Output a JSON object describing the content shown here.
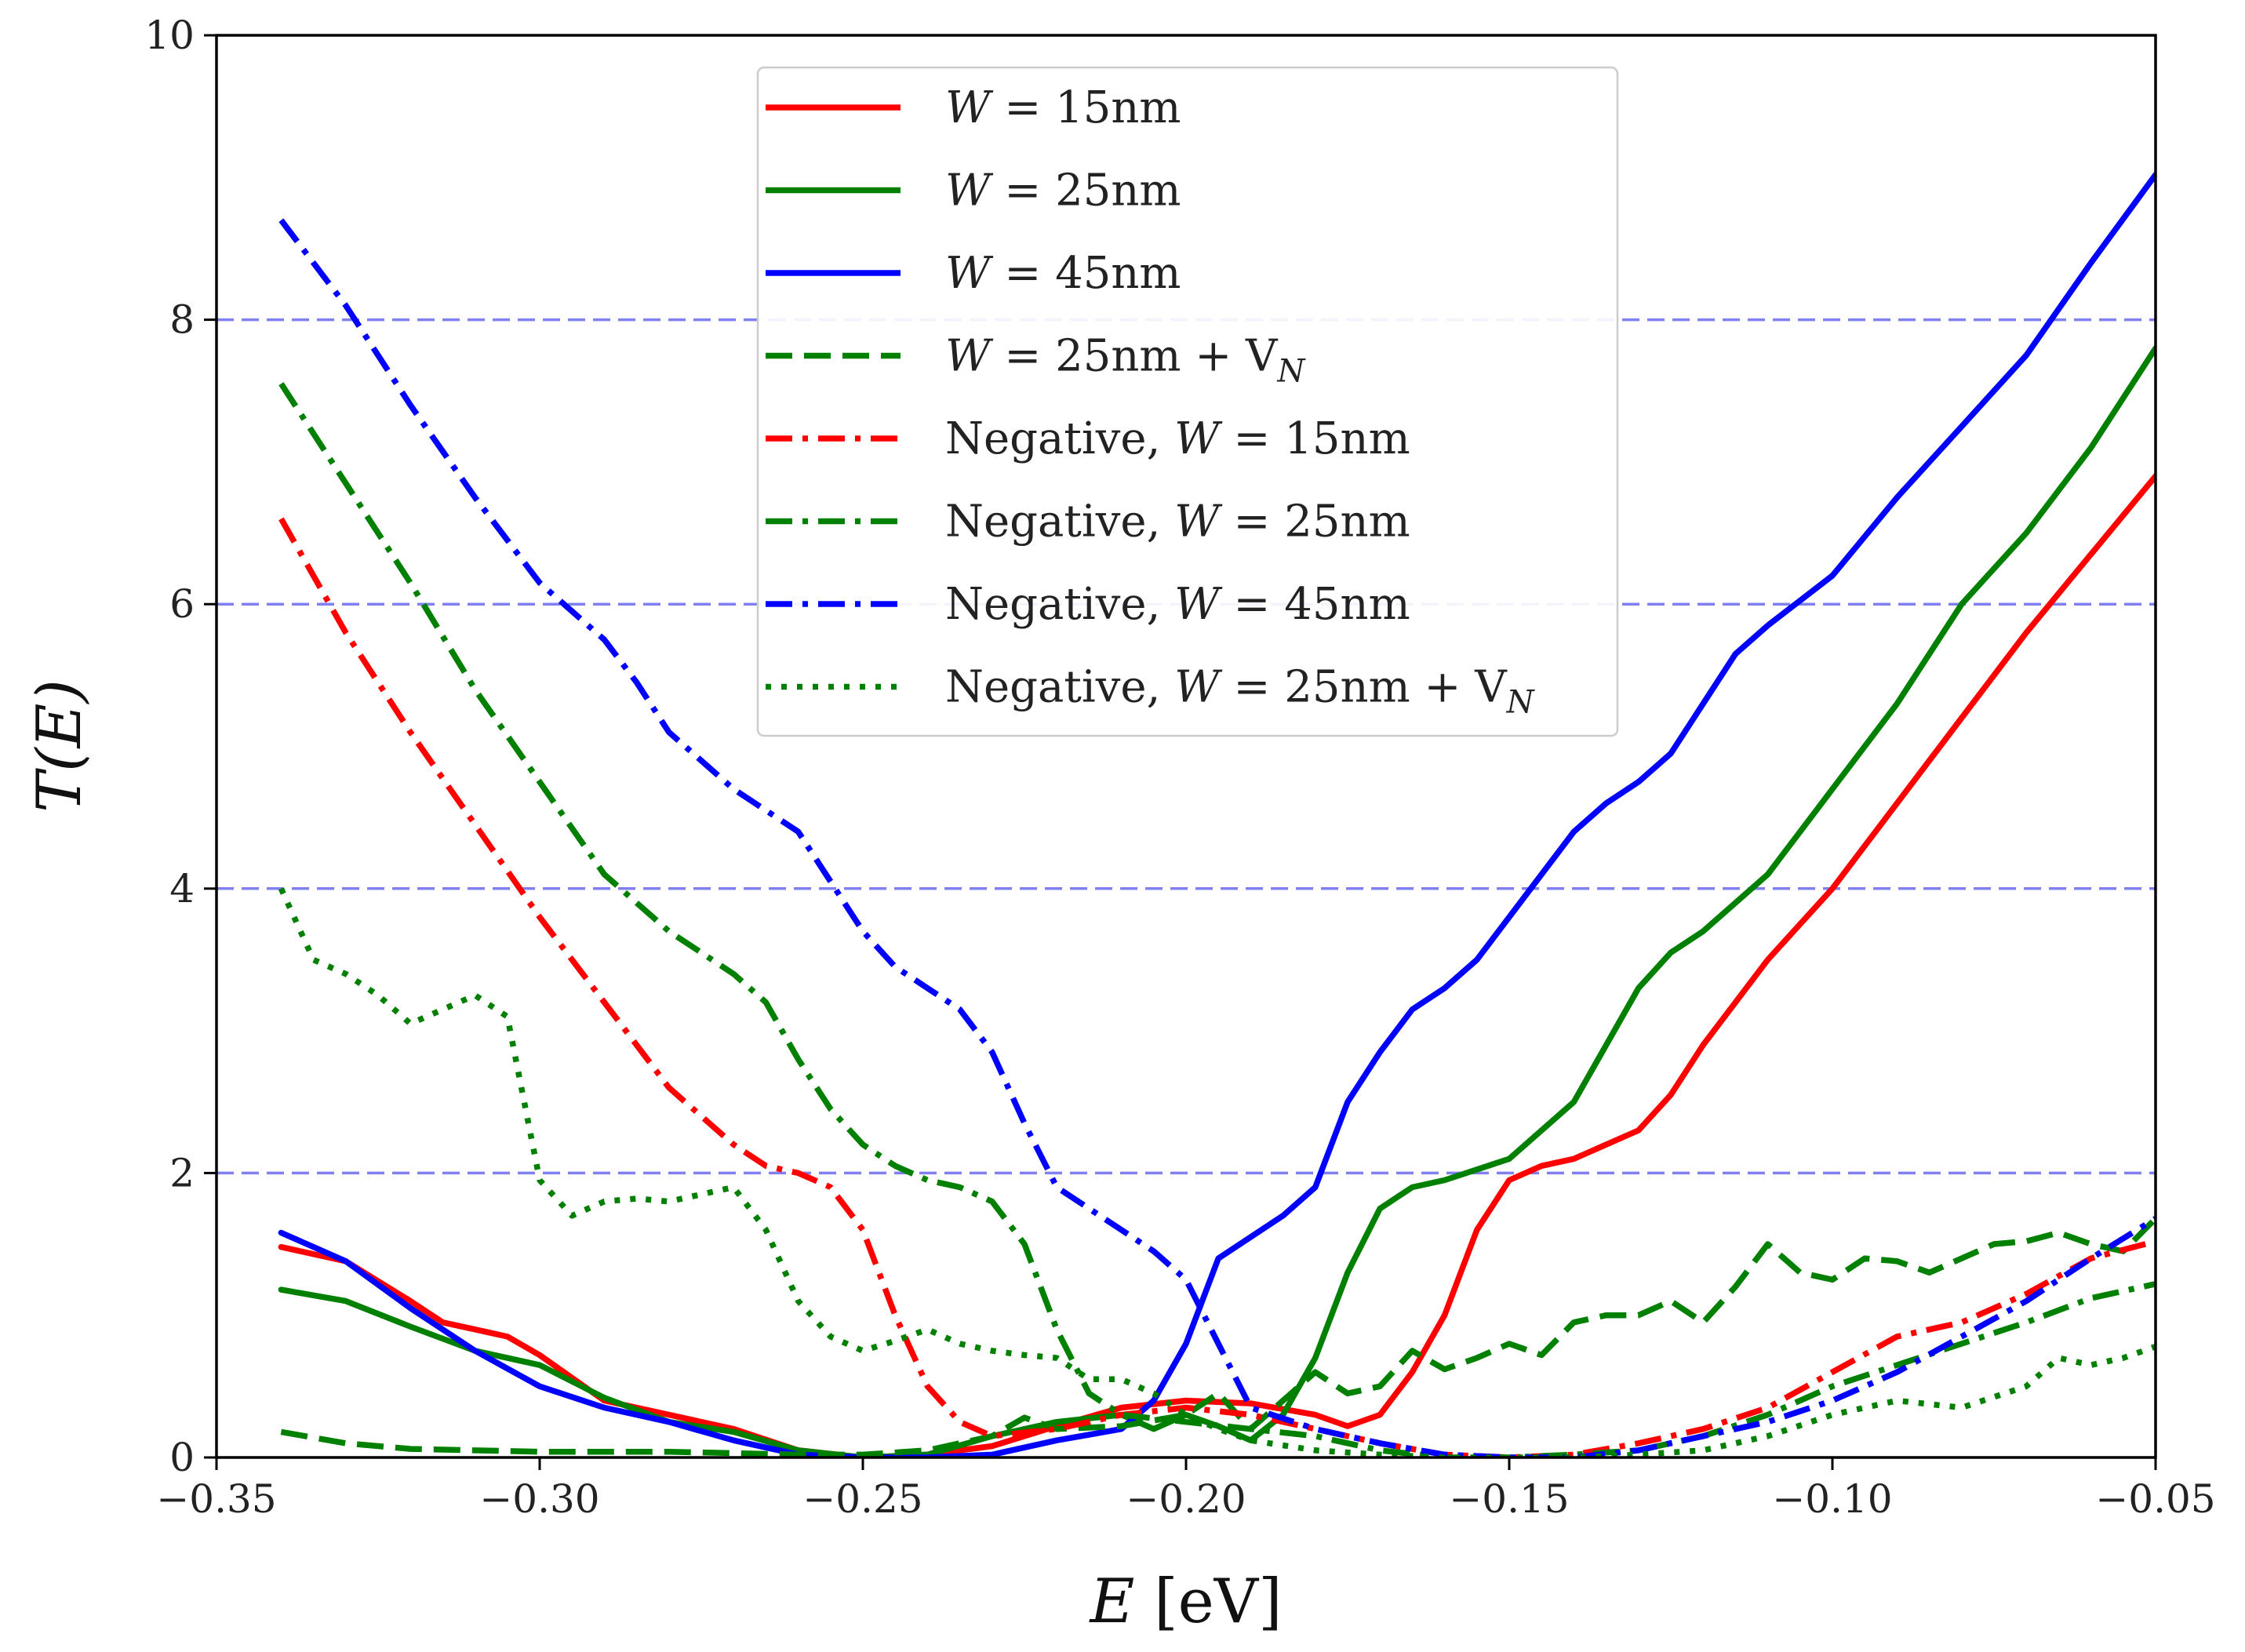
{
  "chart_data": {
    "type": "line",
    "title": "",
    "xlabel_var": "E",
    "xlabel_unit": "[eV]",
    "ylabel": "T(E)",
    "xlim": [
      -0.35,
      -0.05
    ],
    "ylim": [
      0,
      10
    ],
    "xticks": [
      -0.35,
      -0.3,
      -0.25,
      -0.2,
      -0.15,
      -0.1,
      -0.05
    ],
    "xtick_labels": [
      "−0.35",
      "−0.30",
      "−0.25",
      "−0.20",
      "−0.15",
      "−0.10",
      "−0.05"
    ],
    "yticks": [
      0,
      2,
      4,
      6,
      8,
      10
    ],
    "ytick_labels": [
      "0",
      "2",
      "4",
      "6",
      "8",
      "10"
    ],
    "reference_lines": {
      "y": [
        2,
        4,
        6,
        8
      ],
      "color": "#8080f0",
      "style": "dashed"
    },
    "legend_position": "top-center",
    "series": [
      {
        "name": "W=15nm",
        "legend_var": "W",
        "legend_rest": " = 15nm",
        "legend_sub": "",
        "color": "#ff0000",
        "style": "solid",
        "x": [
          -0.34,
          -0.33,
          -0.32,
          -0.315,
          -0.31,
          -0.305,
          -0.3,
          -0.29,
          -0.28,
          -0.27,
          -0.26,
          -0.25,
          -0.24,
          -0.23,
          -0.22,
          -0.21,
          -0.2,
          -0.19,
          -0.18,
          -0.175,
          -0.17,
          -0.165,
          -0.16,
          -0.155,
          -0.15,
          -0.145,
          -0.14,
          -0.13,
          -0.125,
          -0.12,
          -0.11,
          -0.1,
          -0.09,
          -0.08,
          -0.07,
          -0.06,
          -0.05
        ],
        "y": [
          1.48,
          1.38,
          1.1,
          0.95,
          0.9,
          0.85,
          0.72,
          0.4,
          0.3,
          0.2,
          0.05,
          0.0,
          0.02,
          0.08,
          0.22,
          0.35,
          0.4,
          0.38,
          0.3,
          0.22,
          0.3,
          0.6,
          1.0,
          1.6,
          1.95,
          2.05,
          2.1,
          2.3,
          2.55,
          2.9,
          3.5,
          4.0,
          4.6,
          5.2,
          5.8,
          6.35,
          6.9
        ]
      },
      {
        "name": "W=25nm",
        "legend_var": "W",
        "legend_rest": " = 25nm",
        "legend_sub": "",
        "color": "#008000",
        "style": "solid",
        "x": [
          -0.34,
          -0.33,
          -0.32,
          -0.31,
          -0.3,
          -0.29,
          -0.28,
          -0.27,
          -0.26,
          -0.25,
          -0.24,
          -0.23,
          -0.22,
          -0.21,
          -0.205,
          -0.2,
          -0.195,
          -0.19,
          -0.185,
          -0.18,
          -0.175,
          -0.17,
          -0.165,
          -0.16,
          -0.15,
          -0.14,
          -0.13,
          -0.125,
          -0.12,
          -0.11,
          -0.1,
          -0.09,
          -0.08,
          -0.07,
          -0.06,
          -0.05
        ],
        "y": [
          1.18,
          1.1,
          0.92,
          0.75,
          0.65,
          0.42,
          0.25,
          0.18,
          0.05,
          0.0,
          0.02,
          0.15,
          0.25,
          0.3,
          0.2,
          0.3,
          0.22,
          0.12,
          0.3,
          0.7,
          1.3,
          1.75,
          1.9,
          1.95,
          2.1,
          2.5,
          3.3,
          3.55,
          3.7,
          4.1,
          4.7,
          5.3,
          6.0,
          6.5,
          7.1,
          7.8
        ]
      },
      {
        "name": "W=45nm",
        "legend_var": "W",
        "legend_rest": " = 45nm",
        "legend_sub": "",
        "color": "#0000ff",
        "style": "solid",
        "x": [
          -0.34,
          -0.33,
          -0.32,
          -0.31,
          -0.3,
          -0.29,
          -0.28,
          -0.27,
          -0.26,
          -0.25,
          -0.24,
          -0.23,
          -0.22,
          -0.21,
          -0.205,
          -0.2,
          -0.195,
          -0.19,
          -0.185,
          -0.18,
          -0.175,
          -0.17,
          -0.165,
          -0.16,
          -0.155,
          -0.15,
          -0.14,
          -0.135,
          -0.13,
          -0.125,
          -0.12,
          -0.115,
          -0.11,
          -0.1,
          -0.09,
          -0.08,
          -0.07,
          -0.06,
          -0.05
        ],
        "y": [
          1.58,
          1.38,
          1.05,
          0.75,
          0.5,
          0.35,
          0.25,
          0.12,
          0.02,
          0.0,
          0.0,
          0.02,
          0.12,
          0.2,
          0.4,
          0.8,
          1.4,
          1.55,
          1.7,
          1.9,
          2.5,
          2.85,
          3.15,
          3.3,
          3.5,
          3.8,
          4.4,
          4.6,
          4.75,
          4.95,
          5.3,
          5.65,
          5.85,
          6.2,
          6.75,
          7.25,
          7.75,
          8.4,
          9.02
        ]
      },
      {
        "name": "W=25nm + V_N",
        "legend_var": "W",
        "legend_rest": " = 25nm + V",
        "legend_sub": "N",
        "color": "#008000",
        "style": "dashed",
        "x": [
          -0.34,
          -0.33,
          -0.32,
          -0.3,
          -0.28,
          -0.26,
          -0.25,
          -0.24,
          -0.23,
          -0.225,
          -0.22,
          -0.21,
          -0.2,
          -0.195,
          -0.19,
          -0.185,
          -0.18,
          -0.175,
          -0.17,
          -0.165,
          -0.16,
          -0.155,
          -0.15,
          -0.145,
          -0.14,
          -0.135,
          -0.13,
          -0.125,
          -0.12,
          -0.115,
          -0.11,
          -0.105,
          -0.1,
          -0.095,
          -0.09,
          -0.085,
          -0.08,
          -0.075,
          -0.07,
          -0.065,
          -0.06,
          -0.055,
          -0.05
        ],
        "y": [
          0.18,
          0.1,
          0.06,
          0.04,
          0.04,
          0.02,
          0.02,
          0.05,
          0.15,
          0.28,
          0.2,
          0.22,
          0.3,
          0.45,
          0.2,
          0.4,
          0.6,
          0.45,
          0.5,
          0.75,
          0.62,
          0.7,
          0.8,
          0.72,
          0.95,
          1.0,
          1.0,
          1.1,
          0.95,
          1.2,
          1.5,
          1.3,
          1.25,
          1.4,
          1.38,
          1.3,
          1.4,
          1.5,
          1.52,
          1.58,
          1.5,
          1.45,
          1.68
        ]
      },
      {
        "name": "Negative, W=15nm",
        "legend_var": "W",
        "legend_rest": " = 15nm",
        "legend_sub": "",
        "legend_prefix": "Negative, ",
        "color": "#ff0000",
        "style": "dashdot",
        "x": [
          -0.34,
          -0.33,
          -0.32,
          -0.31,
          -0.3,
          -0.29,
          -0.28,
          -0.27,
          -0.265,
          -0.26,
          -0.255,
          -0.25,
          -0.245,
          -0.24,
          -0.235,
          -0.23,
          -0.22,
          -0.21,
          -0.2,
          -0.19,
          -0.18,
          -0.17,
          -0.16,
          -0.15,
          -0.14,
          -0.13,
          -0.12,
          -0.11,
          -0.1,
          -0.09,
          -0.08,
          -0.07,
          -0.06,
          -0.05
        ],
        "y": [
          6.6,
          5.8,
          5.1,
          4.45,
          3.8,
          3.2,
          2.6,
          2.2,
          2.05,
          2.0,
          1.9,
          1.6,
          1.0,
          0.5,
          0.25,
          0.15,
          0.2,
          0.3,
          0.35,
          0.3,
          0.2,
          0.1,
          0.02,
          0.0,
          0.02,
          0.1,
          0.2,
          0.35,
          0.6,
          0.85,
          0.95,
          1.15,
          1.4,
          1.52
        ]
      },
      {
        "name": "Negative, W=25nm",
        "legend_var": "W",
        "legend_rest": " = 25nm",
        "legend_sub": "",
        "legend_prefix": "Negative, ",
        "color": "#008000",
        "style": "dashdot",
        "x": [
          -0.34,
          -0.33,
          -0.32,
          -0.31,
          -0.3,
          -0.29,
          -0.28,
          -0.275,
          -0.27,
          -0.265,
          -0.26,
          -0.255,
          -0.25,
          -0.245,
          -0.24,
          -0.235,
          -0.23,
          -0.225,
          -0.22,
          -0.215,
          -0.21,
          -0.2,
          -0.19,
          -0.18,
          -0.17,
          -0.16,
          -0.15,
          -0.14,
          -0.13,
          -0.12,
          -0.11,
          -0.1,
          -0.09,
          -0.08,
          -0.07,
          -0.06,
          -0.05
        ],
        "y": [
          7.55,
          6.85,
          6.15,
          5.4,
          4.75,
          4.1,
          3.7,
          3.55,
          3.4,
          3.2,
          2.8,
          2.45,
          2.2,
          2.05,
          1.95,
          1.9,
          1.8,
          1.5,
          0.9,
          0.45,
          0.3,
          0.25,
          0.2,
          0.15,
          0.05,
          0.0,
          0.0,
          0.02,
          0.05,
          0.15,
          0.3,
          0.5,
          0.65,
          0.8,
          0.95,
          1.12,
          1.22
        ]
      },
      {
        "name": "Negative, W=45nm",
        "legend_var": "W",
        "legend_rest": " = 45nm",
        "legend_sub": "",
        "legend_prefix": "Negative, ",
        "color": "#0000ff",
        "style": "dashdot",
        "x": [
          -0.34,
          -0.33,
          -0.32,
          -0.31,
          -0.3,
          -0.29,
          -0.285,
          -0.28,
          -0.27,
          -0.265,
          -0.26,
          -0.255,
          -0.25,
          -0.245,
          -0.24,
          -0.235,
          -0.23,
          -0.225,
          -0.22,
          -0.215,
          -0.21,
          -0.205,
          -0.2,
          -0.195,
          -0.19,
          -0.18,
          -0.17,
          -0.16,
          -0.15,
          -0.14,
          -0.13,
          -0.12,
          -0.11,
          -0.1,
          -0.09,
          -0.08,
          -0.07,
          -0.06,
          -0.05
        ],
        "y": [
          8.7,
          8.1,
          7.4,
          6.75,
          6.15,
          5.75,
          5.45,
          5.1,
          4.7,
          4.55,
          4.4,
          4.05,
          3.7,
          3.45,
          3.3,
          3.15,
          2.85,
          2.35,
          1.9,
          1.75,
          1.6,
          1.45,
          1.25,
          0.8,
          0.35,
          0.2,
          0.1,
          0.02,
          0.0,
          0.0,
          0.05,
          0.15,
          0.25,
          0.4,
          0.6,
          0.85,
          1.1,
          1.4,
          1.68
        ]
      },
      {
        "name": "Negative, W=25nm + V_N",
        "legend_var": "W",
        "legend_rest": " = 25nm + V",
        "legend_sub": "N",
        "legend_prefix": "Negative, ",
        "color": "#008000",
        "style": "dotted",
        "x": [
          -0.34,
          -0.335,
          -0.33,
          -0.325,
          -0.32,
          -0.315,
          -0.31,
          -0.305,
          -0.3,
          -0.295,
          -0.29,
          -0.285,
          -0.28,
          -0.275,
          -0.27,
          -0.265,
          -0.26,
          -0.255,
          -0.25,
          -0.245,
          -0.24,
          -0.235,
          -0.23,
          -0.225,
          -0.22,
          -0.215,
          -0.21,
          -0.205,
          -0.2,
          -0.195,
          -0.19,
          -0.18,
          -0.17,
          -0.16,
          -0.15,
          -0.14,
          -0.13,
          -0.12,
          -0.11,
          -0.1,
          -0.09,
          -0.08,
          -0.07,
          -0.065,
          -0.06,
          -0.055,
          -0.05
        ],
        "y": [
          4.0,
          3.5,
          3.4,
          3.25,
          3.05,
          3.15,
          3.25,
          3.1,
          1.95,
          1.7,
          1.8,
          1.82,
          1.8,
          1.85,
          1.9,
          1.6,
          1.1,
          0.85,
          0.75,
          0.82,
          0.9,
          0.8,
          0.75,
          0.72,
          0.7,
          0.55,
          0.55,
          0.45,
          0.3,
          0.2,
          0.12,
          0.05,
          0.02,
          0.0,
          0.0,
          0.0,
          0.02,
          0.05,
          0.15,
          0.3,
          0.4,
          0.35,
          0.5,
          0.7,
          0.65,
          0.7,
          0.78
        ]
      }
    ]
  }
}
